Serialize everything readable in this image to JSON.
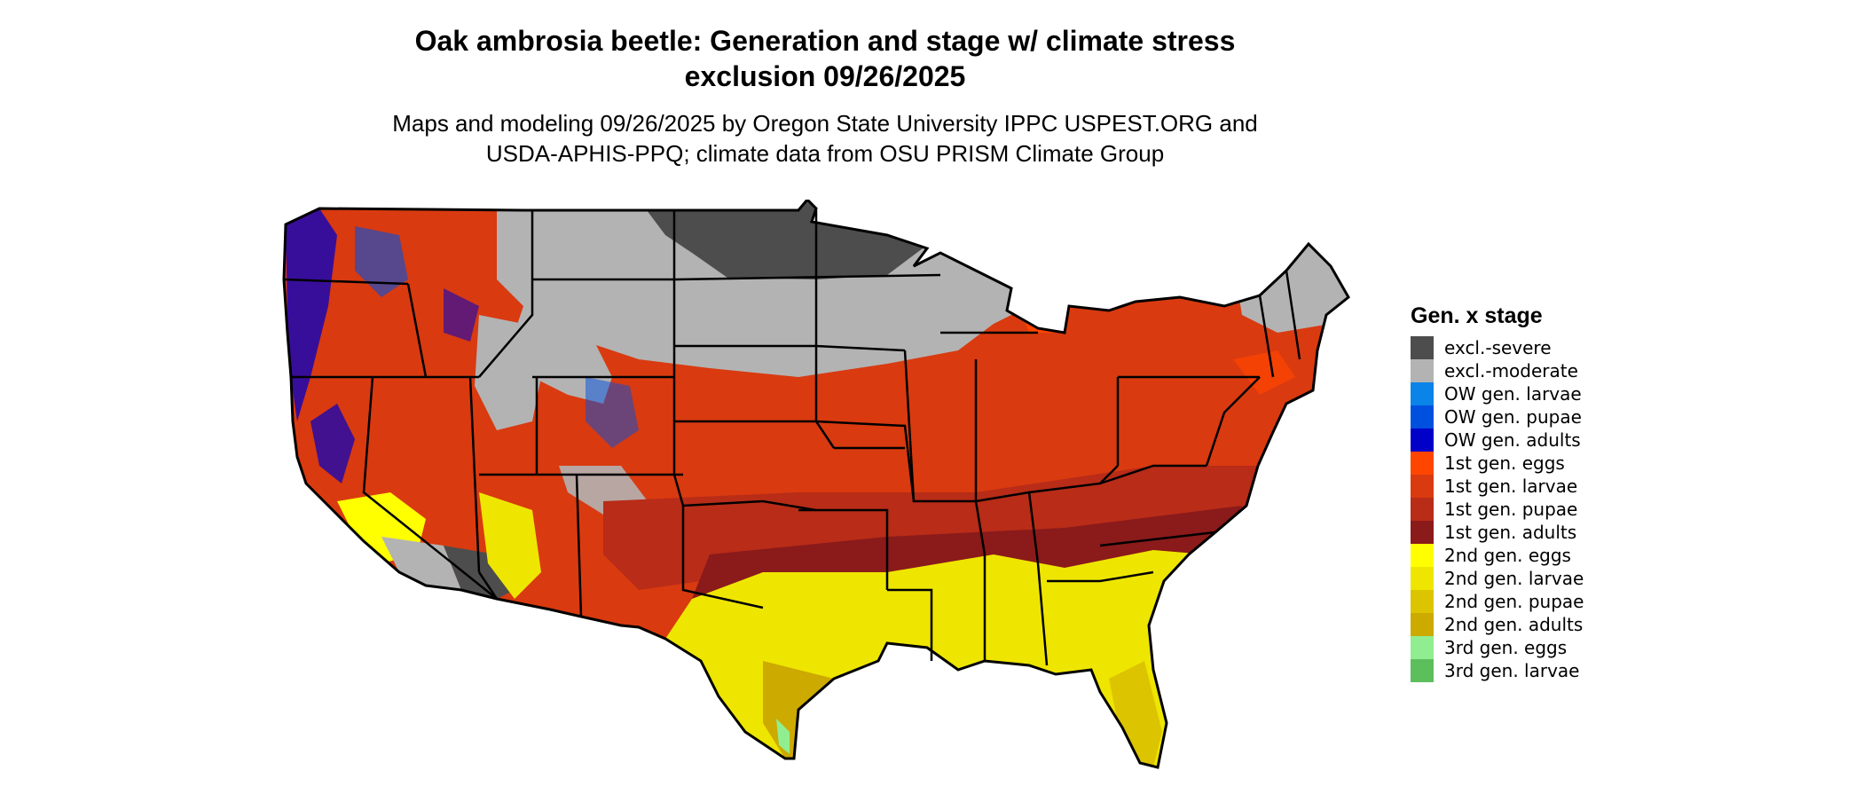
{
  "title_line1": "Oak ambrosia beetle: Generation and stage w/ climate stress",
  "title_line2": "exclusion 09/26/2025",
  "subtitle_line1": "Maps and modeling 09/26/2025 by Oregon State University IPPC USPEST.ORG and",
  "subtitle_line2": "USDA-APHIS-PPQ; climate data from OSU PRISM Climate Group",
  "legend": {
    "title": "Gen. x stage",
    "items": [
      {
        "label": "excl.-severe",
        "color": "#4d4d4d"
      },
      {
        "label": "excl.-moderate",
        "color": "#b3b3b3"
      },
      {
        "label": "OW gen. larvae",
        "color": "#0a84e8"
      },
      {
        "label": "OW gen. pupae",
        "color": "#0050e0"
      },
      {
        "label": "OW gen. adults",
        "color": "#0000c8"
      },
      {
        "label": "1st gen. eggs",
        "color": "#ff4500"
      },
      {
        "label": "1st gen. larvae",
        "color": "#d93a10"
      },
      {
        "label": "1st gen. pupae",
        "color": "#b82c18"
      },
      {
        "label": "1st gen. adults",
        "color": "#8b1a1a"
      },
      {
        "label": "2nd gen. eggs",
        "color": "#ffff00"
      },
      {
        "label": "2nd gen. larvae",
        "color": "#eee600"
      },
      {
        "label": "2nd gen. pupae",
        "color": "#ddc400"
      },
      {
        "label": "2nd gen. adults",
        "color": "#ccaa00"
      },
      {
        "label": "3rd gen. eggs",
        "color": "#90ee90"
      },
      {
        "label": "3rd gen. larvae",
        "color": "#5cbf5c"
      }
    ]
  }
}
